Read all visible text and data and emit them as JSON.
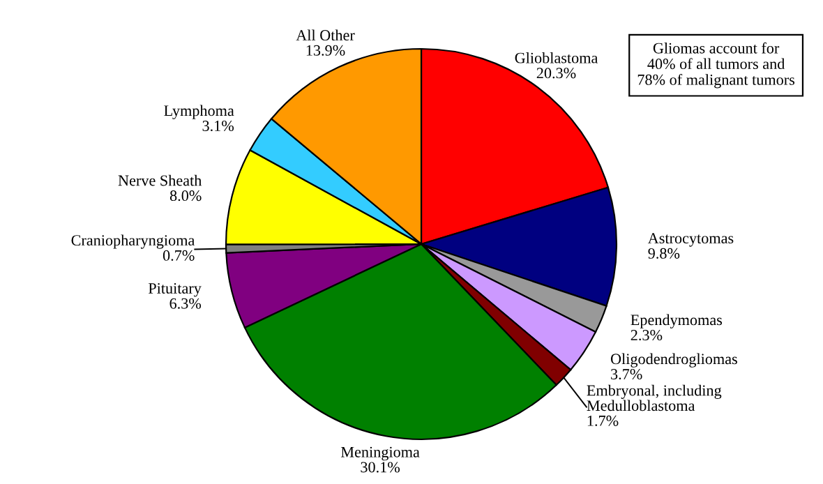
{
  "chart_data": {
    "type": "pie",
    "categories": [
      "Glioblastoma",
      "Astrocytomas",
      "Ependymomas",
      "Oligodendrogliomas",
      "Embryonal, including\nMedulloblastoma",
      "Meningioma",
      "Pituitary",
      "Craniopharyngioma",
      "Nerve Sheath",
      "Lymphoma",
      "All Other"
    ],
    "values": [
      20.3,
      9.8,
      2.3,
      3.7,
      1.7,
      30.1,
      6.3,
      0.7,
      8.0,
      3.1,
      13.9
    ],
    "colors": [
      "#ff0000",
      "#000080",
      "#999999",
      "#cc99ff",
      "#800000",
      "#008000",
      "#800080",
      "#808080",
      "#ffff00",
      "#33ccff",
      "#ff9900"
    ],
    "value_labels": [
      "20.3%",
      "9.8%",
      "2.3%",
      "3.7%",
      "1.7%",
      "30.1%",
      "6.3%",
      "0.7%",
      "8.0%",
      "3.1%",
      "13.9%"
    ],
    "annotations": [
      "Gliomas account for\n40% of all tumors and\n78% of malignant tumors"
    ]
  }
}
